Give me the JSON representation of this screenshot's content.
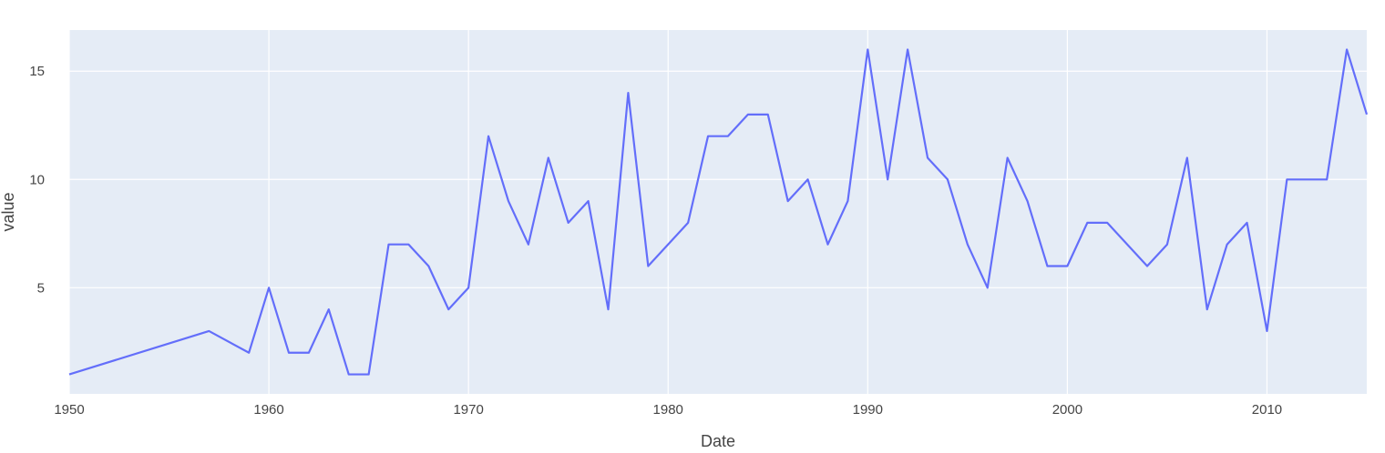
{
  "chart_data": {
    "type": "line",
    "title": "",
    "xlabel": "Date",
    "ylabel": "value",
    "xlim": [
      1950,
      2015
    ],
    "ylim": [
      0.1,
      16.9
    ],
    "x_ticks": [
      1950,
      1960,
      1970,
      1980,
      1990,
      2000,
      2010
    ],
    "y_ticks": [
      5,
      10,
      15
    ],
    "grid": true,
    "colors": {
      "plot_bg": "#e5ecf6",
      "grid": "#ffffff",
      "line": "#636efa"
    },
    "series": [
      {
        "x": [
          1950,
          1957,
          1959,
          1960,
          1961,
          1962,
          1963,
          1964,
          1965,
          1966,
          1967,
          1968,
          1969,
          1970,
          1971,
          1972,
          1973,
          1974,
          1975,
          1976,
          1977,
          1978,
          1979,
          1981,
          1982,
          1983,
          1984,
          1985,
          1986,
          1987,
          1988,
          1989,
          1990,
          1991,
          1992,
          1993,
          1994,
          1995,
          1996,
          1997,
          1998,
          1999,
          2000,
          2001,
          2002,
          2004,
          2005,
          2006,
          2007,
          2008,
          2009,
          2010,
          2011,
          2012,
          2013,
          2014,
          2015
        ],
        "y": [
          1,
          3,
          2,
          5,
          2,
          2,
          4,
          1,
          1,
          7,
          7,
          6,
          4,
          5,
          12,
          9,
          7,
          11,
          8,
          9,
          4,
          14,
          6,
          8,
          12,
          12,
          13,
          13,
          9,
          10,
          7,
          9,
          16,
          10,
          16,
          11,
          10,
          7,
          5,
          11,
          9,
          6,
          6,
          8,
          8,
          6,
          7,
          11,
          4,
          7,
          8,
          3,
          10,
          10,
          10,
          16,
          13
        ]
      }
    ]
  }
}
